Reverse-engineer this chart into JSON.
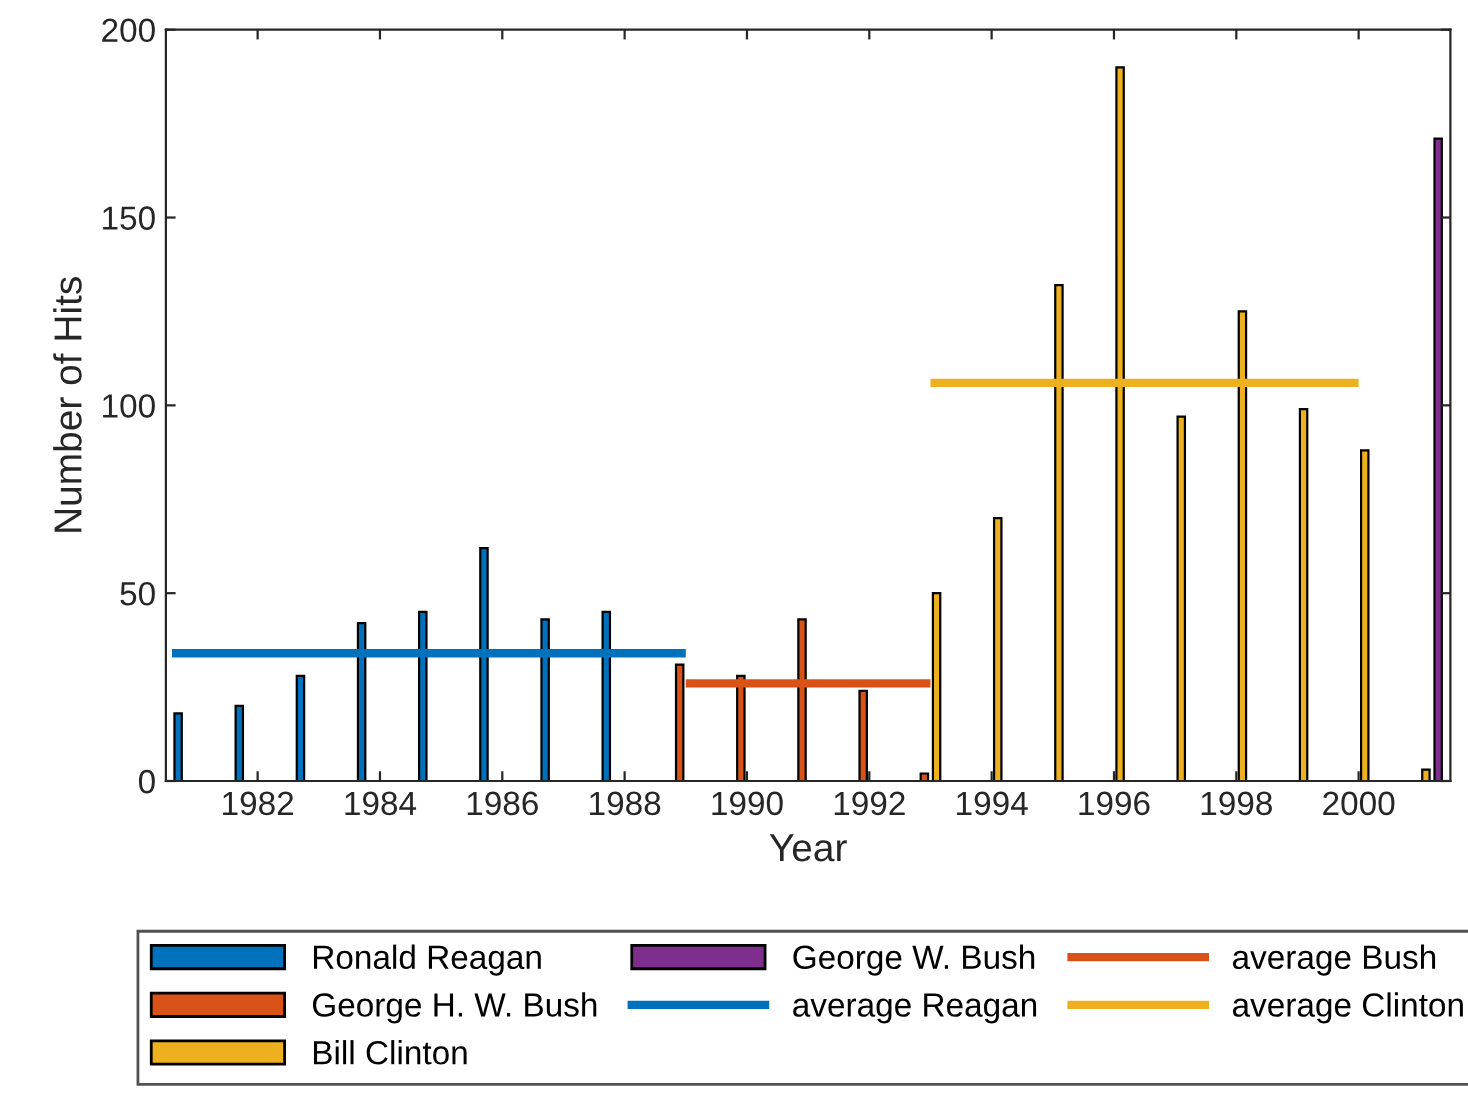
{
  "chart_data": {
    "type": "bar",
    "xlabel": "Year",
    "ylabel": "Number of Hits",
    "x": [
      1981,
      1982,
      1983,
      1984,
      1985,
      1986,
      1987,
      1988,
      1989,
      1990,
      1991,
      1992,
      1993,
      1994,
      1995,
      1996,
      1997,
      1998,
      1999,
      2000,
      2001
    ],
    "series": [
      {
        "name": "Ronald Reagan",
        "color": "#0072bd",
        "values": [
          18,
          20,
          28,
          42,
          45,
          62,
          43,
          45,
          null,
          null,
          null,
          null,
          null,
          null,
          null,
          null,
          null,
          null,
          null,
          null,
          null
        ]
      },
      {
        "name": "George H. W. Bush",
        "color": "#d95319",
        "values": [
          null,
          null,
          null,
          null,
          null,
          null,
          null,
          null,
          31,
          28,
          43,
          24,
          2,
          null,
          null,
          null,
          null,
          null,
          null,
          null,
          null
        ]
      },
      {
        "name": "Bill Clinton",
        "color": "#edb120",
        "values": [
          null,
          null,
          null,
          null,
          null,
          null,
          null,
          null,
          null,
          null,
          null,
          null,
          50,
          70,
          132,
          190,
          97,
          125,
          99,
          88,
          3
        ]
      },
      {
        "name": "George W. Bush",
        "color": "#7e2f8e",
        "values": [
          null,
          null,
          null,
          null,
          null,
          null,
          null,
          null,
          null,
          null,
          null,
          null,
          null,
          null,
          null,
          null,
          null,
          null,
          null,
          null,
          171
        ]
      },
      {
        "name": "average Reagan",
        "type": "line",
        "color": "#0072bd",
        "x": [
          1980.6,
          1989
        ],
        "values": [
          34,
          34
        ]
      },
      {
        "name": "average Bush",
        "type": "line",
        "color": "#d95319",
        "x": [
          1989,
          1993
        ],
        "values": [
          26,
          26
        ]
      },
      {
        "name": "average Clinton",
        "type": "line",
        "color": "#edb120",
        "x": [
          1993,
          2000
        ],
        "values": [
          106,
          106
        ]
      }
    ],
    "xlim": [
      1980.5,
      2001.5
    ],
    "xticks": [
      1982,
      1984,
      1986,
      1988,
      1990,
      1992,
      1994,
      1996,
      1998,
      2000
    ],
    "ylim": [
      0,
      200
    ],
    "yticks": [
      0,
      50,
      100,
      150,
      200
    ],
    "grid": false,
    "legend": "bottom"
  }
}
